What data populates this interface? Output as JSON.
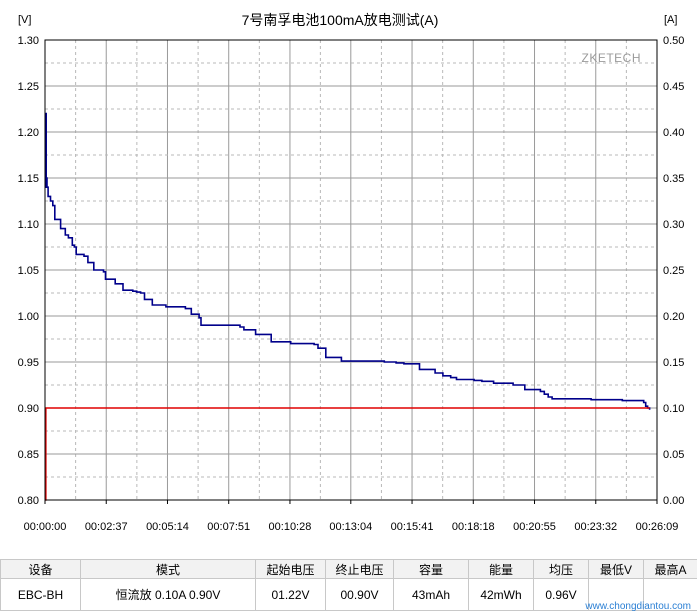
{
  "chart_data": {
    "type": "line",
    "title": "7号南孚电池100mA放电测试(A)",
    "watermark": "ZKETECH",
    "left_unit": "[V]",
    "right_unit": "[A]",
    "xlim": [
      0,
      1569
    ],
    "ylim_left": [
      0.8,
      1.3
    ],
    "ylim_right": [
      0.0,
      0.5
    ],
    "grid": true,
    "x_tick_labels": [
      "00:00:00",
      "00:02:37",
      "00:05:14",
      "00:07:51",
      "00:10:28",
      "00:13:04",
      "00:15:41",
      "00:18:18",
      "00:20:55",
      "00:23:32",
      "00:26:09"
    ],
    "x_tick_values": [
      0,
      157,
      314,
      471,
      628,
      784,
      941,
      1098,
      1255,
      1412,
      1569
    ],
    "y_left_tick_labels": [
      "0.80",
      "0.85",
      "0.90",
      "0.95",
      "1.00",
      "1.05",
      "1.10",
      "1.15",
      "1.20",
      "1.25",
      "1.30"
    ],
    "y_left_tick_values": [
      0.8,
      0.85,
      0.9,
      0.95,
      1.0,
      1.05,
      1.1,
      1.15,
      1.2,
      1.25,
      1.3
    ],
    "y_right_tick_labels": [
      "0.00",
      "0.05",
      "0.10",
      "0.15",
      "0.20",
      "0.25",
      "0.30",
      "0.35",
      "0.40",
      "0.45",
      "0.50"
    ],
    "y_right_tick_values": [
      0.0,
      0.05,
      0.1,
      0.15,
      0.2,
      0.25,
      0.3,
      0.35,
      0.4,
      0.45,
      0.5
    ],
    "series": [
      {
        "axis": "left",
        "color": "#00008b",
        "x": [
          0,
          2,
          3,
          5,
          8,
          14,
          20,
          25,
          30,
          40,
          52,
          60,
          70,
          75,
          80,
          92,
          100,
          110,
          125,
          150,
          155,
          165,
          180,
          200,
          225,
          235,
          245,
          255,
          275,
          310,
          340,
          360,
          375,
          395,
          400,
          430,
          470,
          500,
          510,
          520,
          540,
          580,
          630,
          650,
          670,
          690,
          700,
          720,
          760,
          800,
          820,
          850,
          870,
          880,
          900,
          920,
          960,
          1000,
          1020,
          1040,
          1055,
          1075,
          1090,
          1100,
          1120,
          1150,
          1200,
          1230,
          1270,
          1280,
          1290,
          1300,
          1310,
          1330,
          1350,
          1400,
          1450,
          1480,
          1500,
          1535,
          1540,
          1545,
          1550
        ],
        "y": [
          1.14,
          1.22,
          1.15,
          1.14,
          1.13,
          1.125,
          1.12,
          1.105,
          1.105,
          1.095,
          1.088,
          1.085,
          1.077,
          1.075,
          1.067,
          1.067,
          1.065,
          1.058,
          1.05,
          1.048,
          1.04,
          1.04,
          1.035,
          1.028,
          1.027,
          1.026,
          1.025,
          1.018,
          1.012,
          1.01,
          1.01,
          1.008,
          1.002,
          0.998,
          0.99,
          0.99,
          0.99,
          0.988,
          0.985,
          0.985,
          0.98,
          0.972,
          0.97,
          0.97,
          0.97,
          0.969,
          0.965,
          0.955,
          0.951,
          0.951,
          0.951,
          0.951,
          0.95,
          0.95,
          0.949,
          0.948,
          0.942,
          0.938,
          0.935,
          0.933,
          0.931,
          0.931,
          0.931,
          0.93,
          0.929,
          0.927,
          0.925,
          0.92,
          0.918,
          0.915,
          0.912,
          0.91,
          0.91,
          0.91,
          0.91,
          0.909,
          0.909,
          0.908,
          0.908,
          0.906,
          0.902,
          0.9,
          0.898
        ]
      },
      {
        "axis": "right",
        "color": "#e00000",
        "x": [
          0,
          2,
          5,
          1550
        ],
        "y": [
          0.0,
          0.1,
          0.1,
          0.1
        ]
      }
    ]
  },
  "table": {
    "headers": [
      "设备",
      "模式",
      "起始电压",
      "终止电压",
      "容量",
      "能量",
      "均压",
      "最低V",
      "最高A"
    ],
    "row": [
      "EBC-BH",
      "恒流放  0.10A  0.90V",
      "01.22V",
      "00.90V",
      "43mAh",
      "42mWh",
      "0.96V",
      "",
      ""
    ]
  },
  "footer_credit": "www.chongdiantou.com"
}
